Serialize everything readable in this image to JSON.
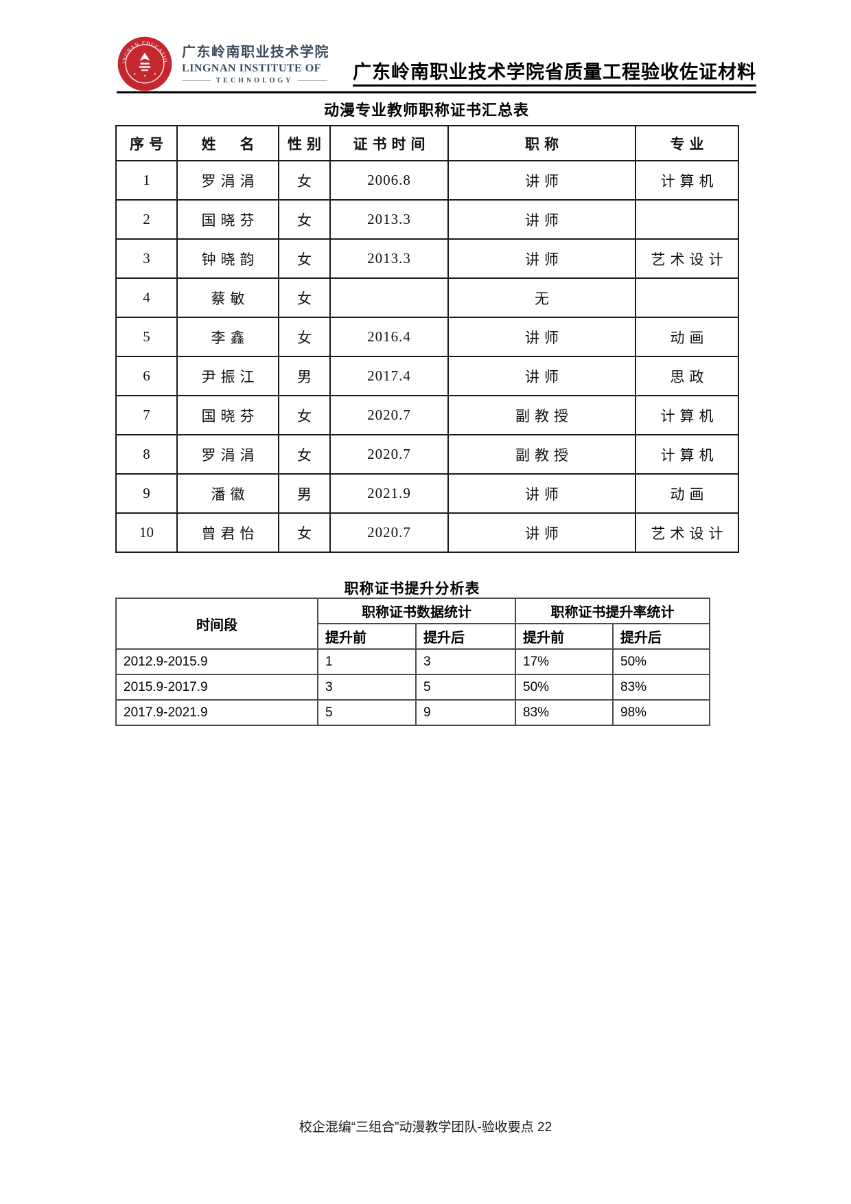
{
  "header": {
    "logo": {
      "institute_cn": "广东岭南职业技术学院",
      "institute_en_line1": "LINGNAN INSTITUTE OF",
      "institute_en_line2": "TECHNOLOGY",
      "seal_text": "LINGNAN EDUCATION",
      "seal_color": "#c5272e",
      "text_color": "#3a4b5c"
    },
    "doc_title": "广东岭南职业技术学院省质量工程验收佐证材料"
  },
  "table1": {
    "title": "动漫专业教师职称证书汇总表",
    "columns": [
      "序号",
      "姓　名",
      "性别",
      "证书时间",
      "职称",
      "专业"
    ],
    "rows": [
      [
        "1",
        "罗涓涓",
        "女",
        "2006.8",
        "讲师",
        "计算机"
      ],
      [
        "2",
        "国晓芬",
        "女",
        "2013.3",
        "讲师",
        ""
      ],
      [
        "3",
        "钟晓韵",
        "女",
        "2013.3",
        "讲师",
        "艺术设计"
      ],
      [
        "4",
        "蔡敏",
        "女",
        "",
        "无",
        ""
      ],
      [
        "5",
        "李鑫",
        "女",
        "2016.4",
        "讲师",
        "动画"
      ],
      [
        "6",
        "尹振江",
        "男",
        "2017.4",
        "讲师",
        "思政"
      ],
      [
        "7",
        "国晓芬",
        "女",
        "2020.7",
        "副教授",
        "计算机"
      ],
      [
        "8",
        "罗涓涓",
        "女",
        "2020.7",
        "副教授",
        "计算机"
      ],
      [
        "9",
        "潘徽",
        "男",
        "2021.9",
        "讲师",
        "动画"
      ],
      [
        "10",
        "曾君怡",
        "女",
        "2020.7",
        "讲师",
        "艺术设计"
      ]
    ]
  },
  "table2": {
    "title": "职称证书提升分析表",
    "col_time": "时间段",
    "group_count": "职称证书数据统计",
    "group_rate": "职称证书提升率统计",
    "sub_before": "提升前",
    "sub_after": "提升后",
    "rows": [
      [
        "2012.9-2015.9",
        "1",
        "3",
        "17%",
        "50%"
      ],
      [
        "2015.9-2017.9",
        "3",
        "5",
        "50%",
        "83%"
      ],
      [
        "2017.9-2021.9",
        "5",
        "9",
        "83%",
        "98%"
      ]
    ]
  },
  "footer": {
    "text": "校企混编“三组合”动漫教学团队-验收要点 22"
  }
}
